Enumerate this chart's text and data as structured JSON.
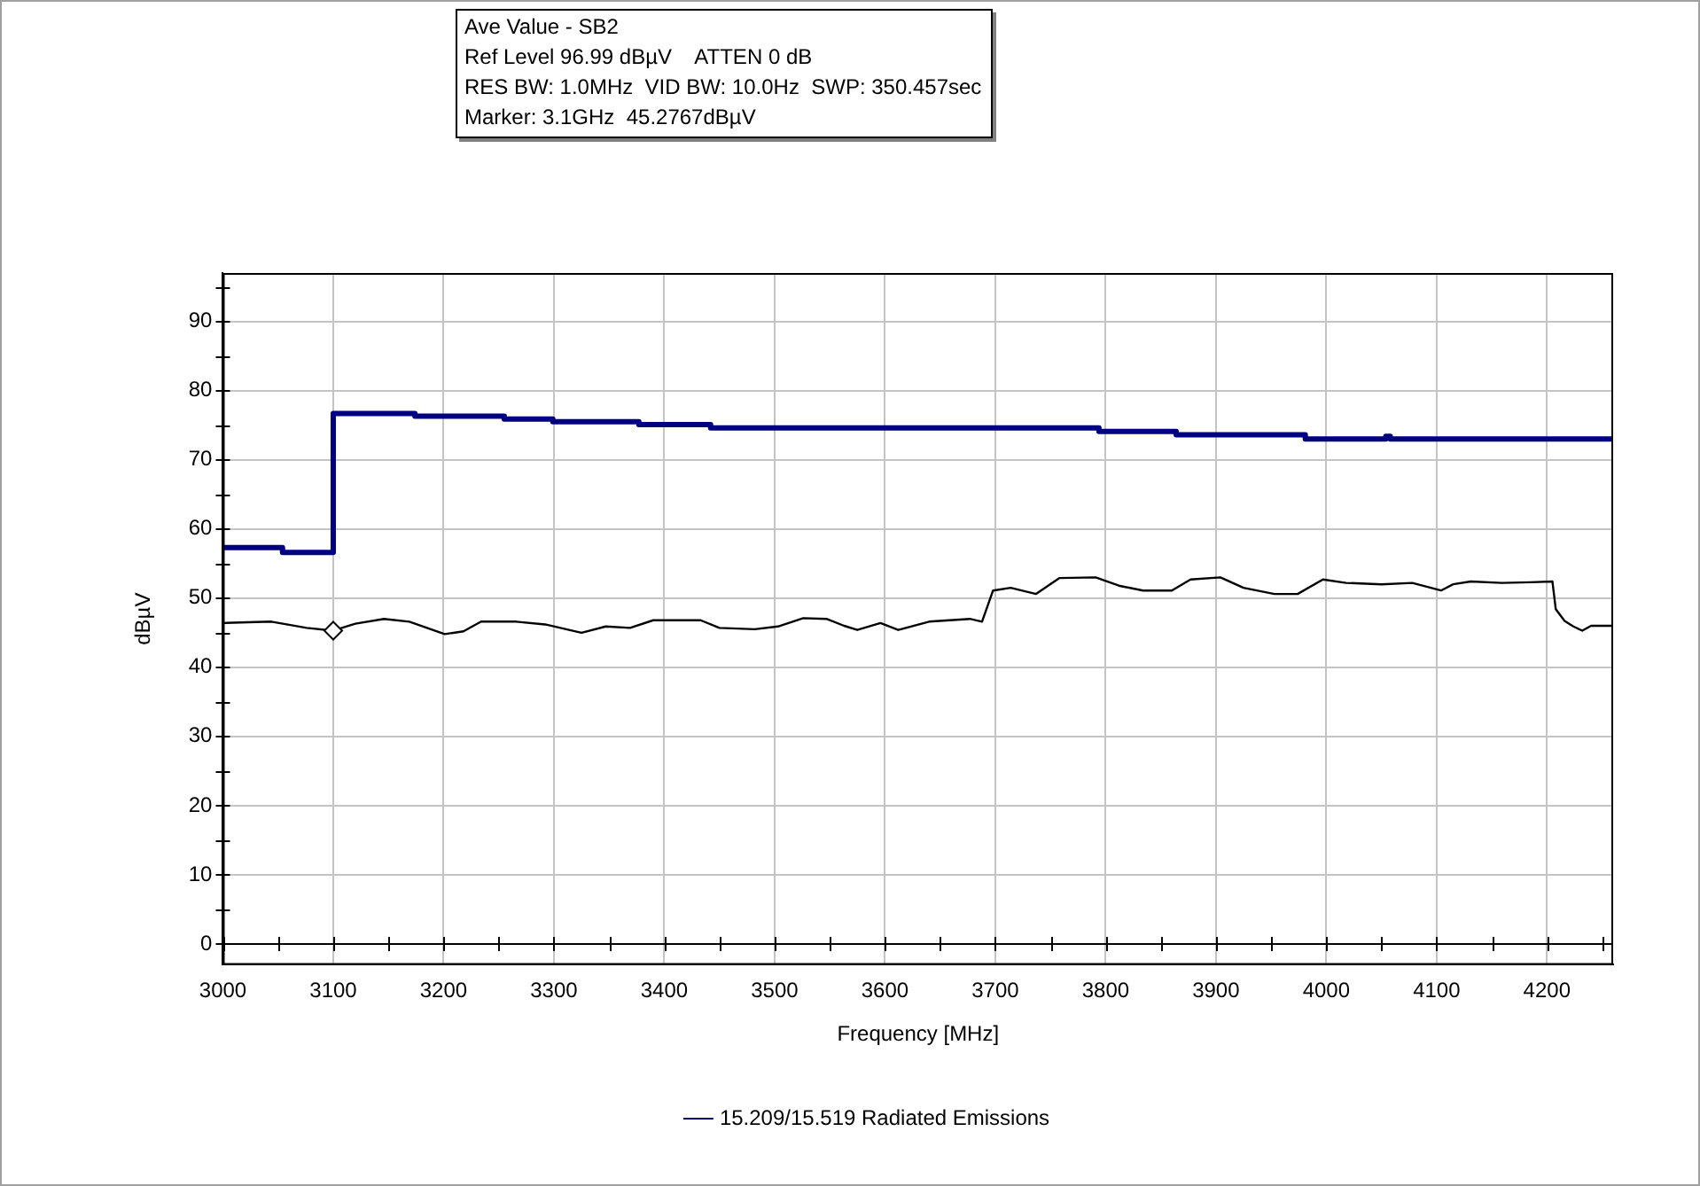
{
  "chart_data": {
    "type": "line",
    "xlabel": "Frequency [MHz]",
    "ylabel": "dBµV",
    "annotations": [
      "Ave Value - SB2",
      "Ref Level 96.99 dBµV    ATTEN 0 dB",
      "RES BW: 1.0MHz  VID BW: 10.0Hz  SWP: 350.457sec",
      "Marker: 3.1GHz  45.2767dBµV"
    ],
    "xlim": [
      3000,
      4260
    ],
    "xticks": [
      3000,
      {
        "value": 3050,
        "label": null
      },
      3100,
      {
        "value": 3150,
        "label": null
      },
      3200,
      {
        "value": 3250,
        "label": null
      },
      3300,
      {
        "value": 3350,
        "label": null
      },
      3400,
      {
        "value": 3450,
        "label": null
      },
      3500,
      {
        "value": 3550,
        "label": null
      },
      3600,
      {
        "value": 3650,
        "label": null
      },
      3700,
      {
        "value": 3750,
        "label": null
      },
      3800,
      {
        "value": 3850,
        "label": null
      },
      3900,
      {
        "value": 3950,
        "label": null
      },
      4000,
      {
        "value": 4050,
        "label": null
      },
      4100,
      {
        "value": 4150,
        "label": null
      },
      4200,
      {
        "value": 4250,
        "label": null
      }
    ],
    "ylim": [
      -3,
      97
    ],
    "yticks": [
      0,
      {
        "value": 5,
        "label": null
      },
      10,
      {
        "value": 15,
        "label": null
      },
      20,
      {
        "value": 25,
        "label": null
      },
      30,
      {
        "value": 35,
        "label": null
      },
      40,
      {
        "value": 45,
        "label": null
      },
      50,
      {
        "value": 55,
        "label": null
      },
      60,
      {
        "value": 65,
        "label": null
      },
      70,
      {
        "value": 75,
        "label": null
      },
      80,
      {
        "value": 85,
        "label": null
      },
      90,
      {
        "value": 95,
        "label": null
      }
    ],
    "grid": true,
    "legend": "bottom",
    "ref_lines": [
      {
        "axis": "y",
        "value": 0,
        "color": "#000000"
      }
    ],
    "series": [
      {
        "name": "15.209/15.519 Radiated Emissions",
        "type": "step",
        "color": "#000080",
        "marker": "none",
        "x": [
          3000,
          3054,
          3100,
          3174,
          3255,
          3299,
          3377,
          3442,
          3794,
          3864,
          3981,
          4054,
          4058,
          4260
        ],
        "values": [
          57.3,
          56.6,
          76.7,
          76.3,
          75.9,
          75.5,
          75.1,
          74.6,
          74.1,
          73.6,
          73.0,
          73.4,
          73.0,
          73.0
        ]
      },
      {
        "type": "line",
        "color": "#000000",
        "marker": "none",
        "x": [
          3000,
          3044,
          3076,
          3100,
          3120,
          3146,
          3169,
          3185,
          3201,
          3218,
          3234,
          3266,
          3292,
          3325,
          3347,
          3369,
          3390,
          3433,
          3450,
          3482,
          3503,
          3526,
          3547,
          3563,
          3575,
          3596,
          3612,
          3640,
          3677,
          3688,
          3698,
          3714,
          3737,
          3758,
          3791,
          3812,
          3834,
          3860,
          3877,
          3904,
          3925,
          3953,
          3974,
          3997,
          4018,
          4050,
          4078,
          4104,
          4115,
          4131,
          4159,
          4185,
          4205,
          4208,
          4216,
          4224,
          4232,
          4240,
          4260
        ],
        "values": [
          46.4,
          46.6,
          45.7,
          45.3,
          46.3,
          47.0,
          46.6,
          45.7,
          44.8,
          45.2,
          46.6,
          46.6,
          46.2,
          45.0,
          45.9,
          45.7,
          46.8,
          46.8,
          45.7,
          45.5,
          45.9,
          47.1,
          47.0,
          46.0,
          45.4,
          46.4,
          45.4,
          46.6,
          47.0,
          46.6,
          51.1,
          51.5,
          50.6,
          52.9,
          53.0,
          51.8,
          51.1,
          51.1,
          52.7,
          53.0,
          51.5,
          50.6,
          50.6,
          52.7,
          52.2,
          52.0,
          52.2,
          51.1,
          52.0,
          52.4,
          52.2,
          52.3,
          52.4,
          48.4,
          46.7,
          45.9,
          45.3,
          46.0,
          46.0
        ]
      },
      {
        "type": "scatter",
        "color": "#000000",
        "marker": "diamond",
        "x": [
          3100
        ],
        "values": [
          45.3
        ]
      }
    ]
  }
}
